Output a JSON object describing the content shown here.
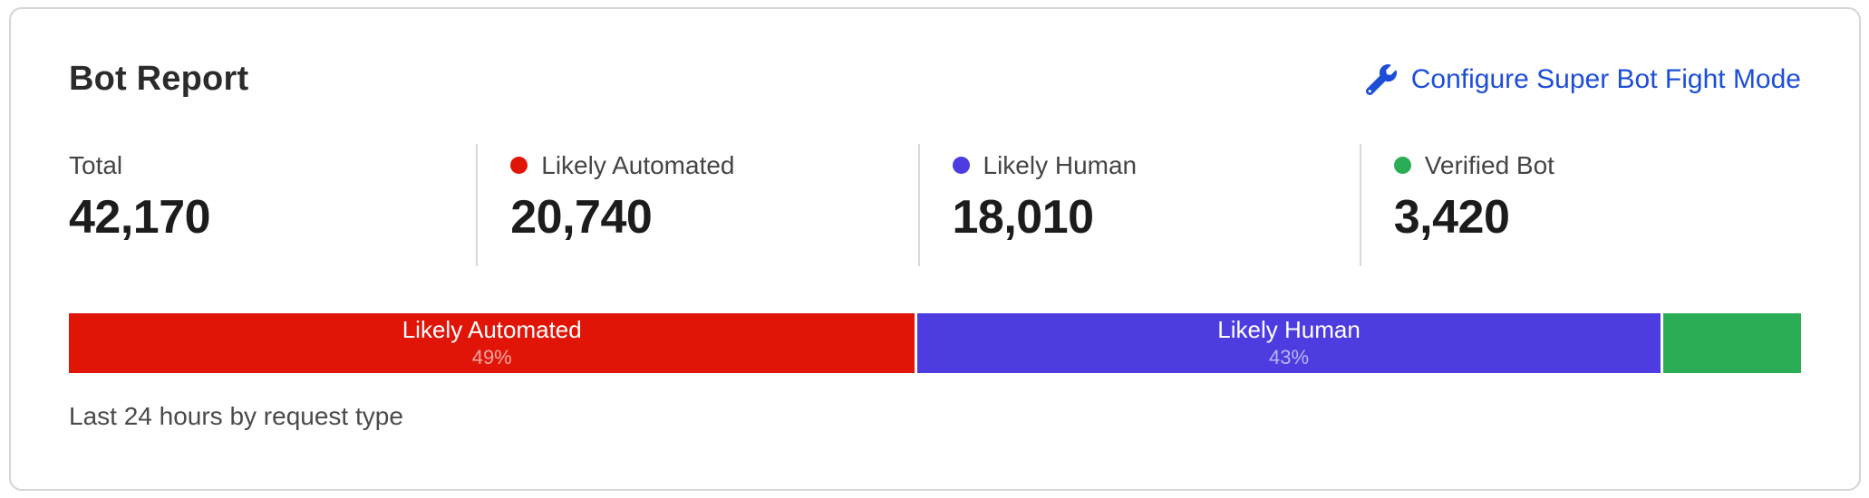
{
  "card": {
    "title": "Bot Report",
    "configure_link": {
      "label": "Configure Super Bot Fight Mode",
      "icon": "wrench-icon",
      "color": "#1d4ed8"
    },
    "caption": "Last 24 hours by request type"
  },
  "stats": [
    {
      "label": "Total",
      "value": "42,170",
      "dot_color": null
    },
    {
      "label": "Likely Automated",
      "value": "20,740",
      "dot_color": "#e01508"
    },
    {
      "label": "Likely Human",
      "value": "18,010",
      "dot_color": "#4d3ce0"
    },
    {
      "label": "Verified Bot",
      "value": "3,420",
      "dot_color": "#2bad56"
    }
  ],
  "chart_data": {
    "type": "bar",
    "variant": "horizontal-stacked",
    "title": "Bot Report",
    "subtitle": "Last 24 hours by request type",
    "total": 42170,
    "segments": [
      {
        "label": "Likely Automated",
        "value": 20740,
        "percent": 49,
        "percent_label": "49%",
        "color": "#e01508",
        "text_visible": true
      },
      {
        "label": "Likely Human",
        "value": 18010,
        "percent": 43,
        "percent_label": "43%",
        "color": "#4d3ce0",
        "text_visible": true
      },
      {
        "label": "Verified Bot",
        "value": 3420,
        "percent": 8,
        "percent_label": "",
        "color": "#2bad56",
        "text_visible": false
      }
    ],
    "legend_position": "top",
    "grid": false
  }
}
